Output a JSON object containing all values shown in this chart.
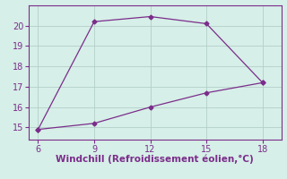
{
  "x": [
    6,
    9,
    12,
    15,
    18
  ],
  "y_upper": [
    14.9,
    20.2,
    20.45,
    20.1,
    17.2
  ],
  "y_lower": [
    14.9,
    15.2,
    16.0,
    16.7,
    17.2
  ],
  "line_color": "#7B2D8B",
  "bg_color": "#d6efe8",
  "grid_color": "#b4cfc8",
  "spine_color": "#7B2D8B",
  "xlabel": "Windchill (Refroidissement éolien,°C)",
  "xlabel_color": "#7B2D8B",
  "xlabel_fontsize": 7.5,
  "xticks": [
    6,
    9,
    12,
    15,
    18
  ],
  "yticks": [
    15,
    16,
    17,
    18,
    19,
    20
  ],
  "xlim": [
    5.5,
    19.0
  ],
  "ylim": [
    14.4,
    21.0
  ],
  "tick_color": "#7B2D8B",
  "tick_fontsize": 7,
  "marker": "D",
  "marker_size": 2.5,
  "linewidth": 0.9
}
